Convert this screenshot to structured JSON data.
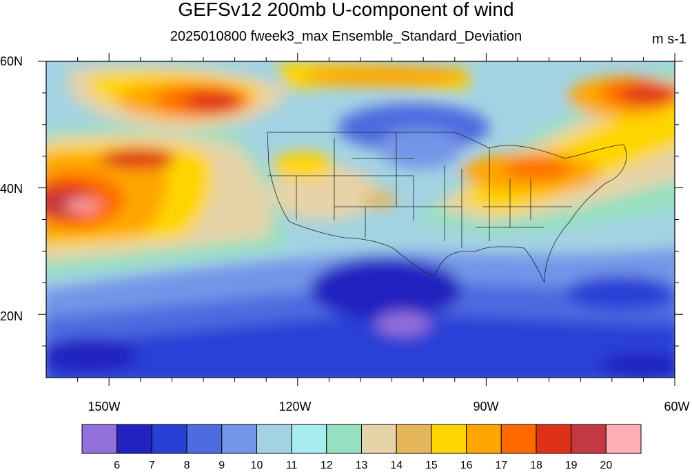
{
  "title": "GEFSv12 200mb U-component of wind",
  "subtitle": "2025010800 fweek3_max Ensemble_Standard_Deviation",
  "units": "m s-1",
  "map": {
    "lon_range": [
      -160,
      -60
    ],
    "lat_range": [
      10,
      60
    ],
    "lat_ticks": [
      {
        "value": 60,
        "label": "60N"
      },
      {
        "value": 40,
        "label": "40N"
      },
      {
        "value": 20,
        "label": "20N"
      }
    ],
    "lon_ticks": [
      {
        "value": -150,
        "label": "150W"
      },
      {
        "value": -120,
        "label": "120W"
      },
      {
        "value": -90,
        "label": "90W"
      },
      {
        "value": -60,
        "label": "60W"
      }
    ]
  },
  "colorbar": {
    "colors": [
      "#9370db",
      "#2222c0",
      "#2a3fd6",
      "#4f6be0",
      "#7595e8",
      "#a3d3e3",
      "#a8ecf0",
      "#95e0c0",
      "#e6d3a8",
      "#e6b75a",
      "#ffd500",
      "#ffa600",
      "#fe6a00",
      "#de3117",
      "#c33841",
      "#ffb0b6"
    ],
    "labels": [
      "6",
      "7",
      "8",
      "9",
      "10",
      "11",
      "12",
      "13",
      "14",
      "15",
      "16",
      "17",
      "18",
      "19",
      "20"
    ]
  }
}
